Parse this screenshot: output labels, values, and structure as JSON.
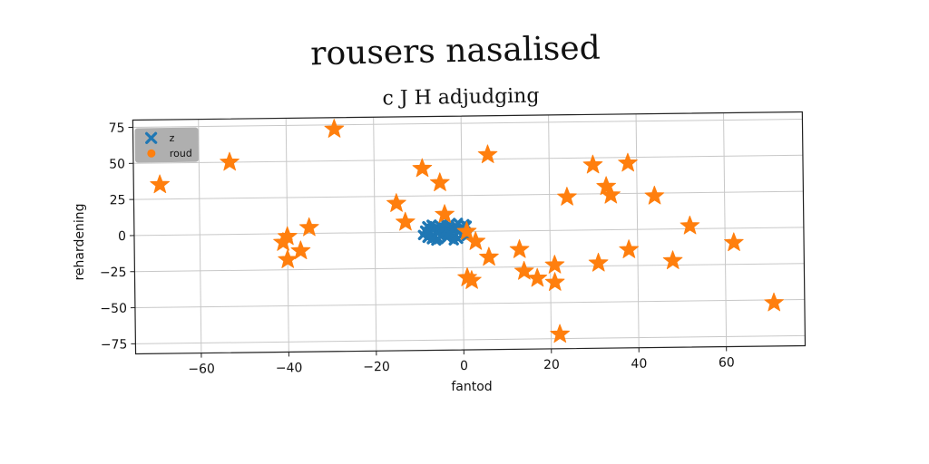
{
  "chart_data": {
    "type": "scatter",
    "title": "rousers nasalised",
    "subtitle": "c J H adjudging",
    "xlabel": "fantod",
    "ylabel": "rehardening",
    "xlim": [
      -75,
      78
    ],
    "ylim": [
      -82,
      80
    ],
    "xticks": [
      -60,
      -40,
      -20,
      0,
      20,
      40,
      60
    ],
    "yticks": [
      -75,
      -50,
      -25,
      0,
      25,
      50,
      75
    ],
    "grid": true,
    "legend_position": "top-left",
    "series": [
      {
        "name": "z",
        "marker": "x",
        "color": "#1f77b4",
        "points": [
          [
            -9,
            -2
          ],
          [
            -8.5,
            1
          ],
          [
            -8,
            4
          ],
          [
            -8,
            -4
          ],
          [
            -7.5,
            -1
          ],
          [
            -7,
            2
          ],
          [
            -7,
            5
          ],
          [
            -6.5,
            -3
          ],
          [
            -6,
            0
          ],
          [
            -6,
            3
          ],
          [
            -5.5,
            -5
          ],
          [
            -5,
            1
          ],
          [
            -5,
            4
          ],
          [
            -4.5,
            -2
          ],
          [
            -4,
            0
          ],
          [
            -4,
            3
          ],
          [
            -3.5,
            -4
          ],
          [
            -3,
            2
          ],
          [
            -3,
            5
          ],
          [
            -2.5,
            -1
          ],
          [
            -2,
            1
          ],
          [
            -2,
            -3
          ],
          [
            -1.5,
            4
          ],
          [
            -1,
            0
          ],
          [
            -1,
            -5
          ],
          [
            -0.5,
            2
          ],
          [
            0,
            -2
          ],
          [
            0,
            3
          ],
          [
            0.5,
            0
          ],
          [
            1,
            -3
          ],
          [
            1,
            4
          ],
          [
            -8,
            0
          ],
          [
            -6,
            -6
          ],
          [
            -4,
            6
          ],
          [
            -2,
            -6
          ],
          [
            -5,
            -3
          ],
          [
            -3,
            -1
          ],
          [
            -7,
            -5
          ],
          [
            -1,
            6
          ],
          [
            0.5,
            5
          ]
        ]
      },
      {
        "name": "roud",
        "marker": "star",
        "color": "#ff7f0e",
        "points": [
          [
            -69,
            35
          ],
          [
            -53,
            50
          ],
          [
            -29,
            72
          ],
          [
            -40,
            -2
          ],
          [
            -41,
            -6
          ],
          [
            -40,
            -18
          ],
          [
            -37,
            -12
          ],
          [
            -35,
            4
          ],
          [
            -15,
            20
          ],
          [
            -13,
            7
          ],
          [
            -9,
            44
          ],
          [
            -5,
            34
          ],
          [
            -4,
            12
          ],
          [
            1,
            0
          ],
          [
            3,
            -7
          ],
          [
            6,
            -18
          ],
          [
            1,
            -32
          ],
          [
            2,
            -34
          ],
          [
            6,
            53
          ],
          [
            13,
            -13
          ],
          [
            14,
            -28
          ],
          [
            17,
            -33
          ],
          [
            21,
            -24
          ],
          [
            21,
            -36
          ],
          [
            22,
            -72
          ],
          [
            24,
            23
          ],
          [
            30,
            45
          ],
          [
            31,
            -23
          ],
          [
            33,
            30
          ],
          [
            34,
            24
          ],
          [
            38,
            -14
          ],
          [
            38,
            46
          ],
          [
            44,
            23
          ],
          [
            48,
            -22
          ],
          [
            52,
            2
          ],
          [
            62,
            -10
          ],
          [
            71,
            -52
          ]
        ]
      }
    ]
  }
}
